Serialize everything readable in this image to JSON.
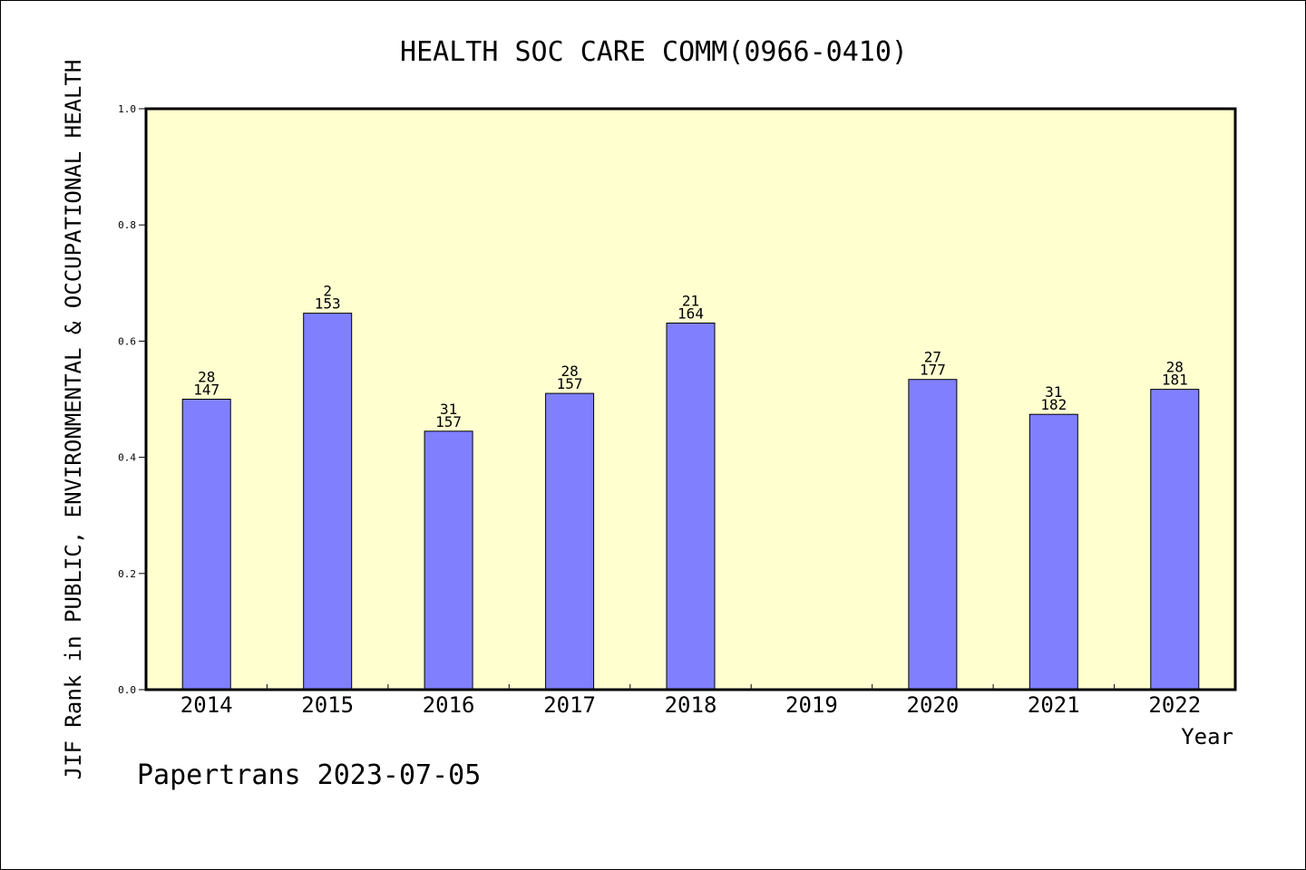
{
  "chart_data": {
    "type": "bar",
    "title": "HEALTH SOC CARE COMM(0966-0410)",
    "xlabel": "Year",
    "ylabel": "JIF Rank in PUBLIC, ENVIRONMENTAL & OCCUPATIONAL HEALTH",
    "ylim": [
      0,
      1.0
    ],
    "yticks": [
      "0.0",
      "0.2",
      "0.4",
      "0.6",
      "0.8",
      "1.0"
    ],
    "grid": false,
    "categories": [
      "2014",
      "2015",
      "2016",
      "2017",
      "2018",
      "2019",
      "2020",
      "2021",
      "2022"
    ],
    "values": [
      0.5,
      0.648,
      0.445,
      0.51,
      0.631,
      null,
      0.534,
      0.474,
      0.517
    ],
    "rank": [
      "28",
      "2",
      "31",
      "28",
      "21",
      "",
      "27",
      "31",
      "28"
    ],
    "total": [
      "147",
      "153",
      "157",
      "157",
      "164",
      "",
      "177",
      "182",
      "181"
    ],
    "colors": {
      "plot_background": "#ffffd0",
      "bar_fill": "#8080ff",
      "bar_stroke": "#000000",
      "axis": "#000000"
    }
  },
  "footer": {
    "credit": "Papertrans 2023-07-05"
  }
}
